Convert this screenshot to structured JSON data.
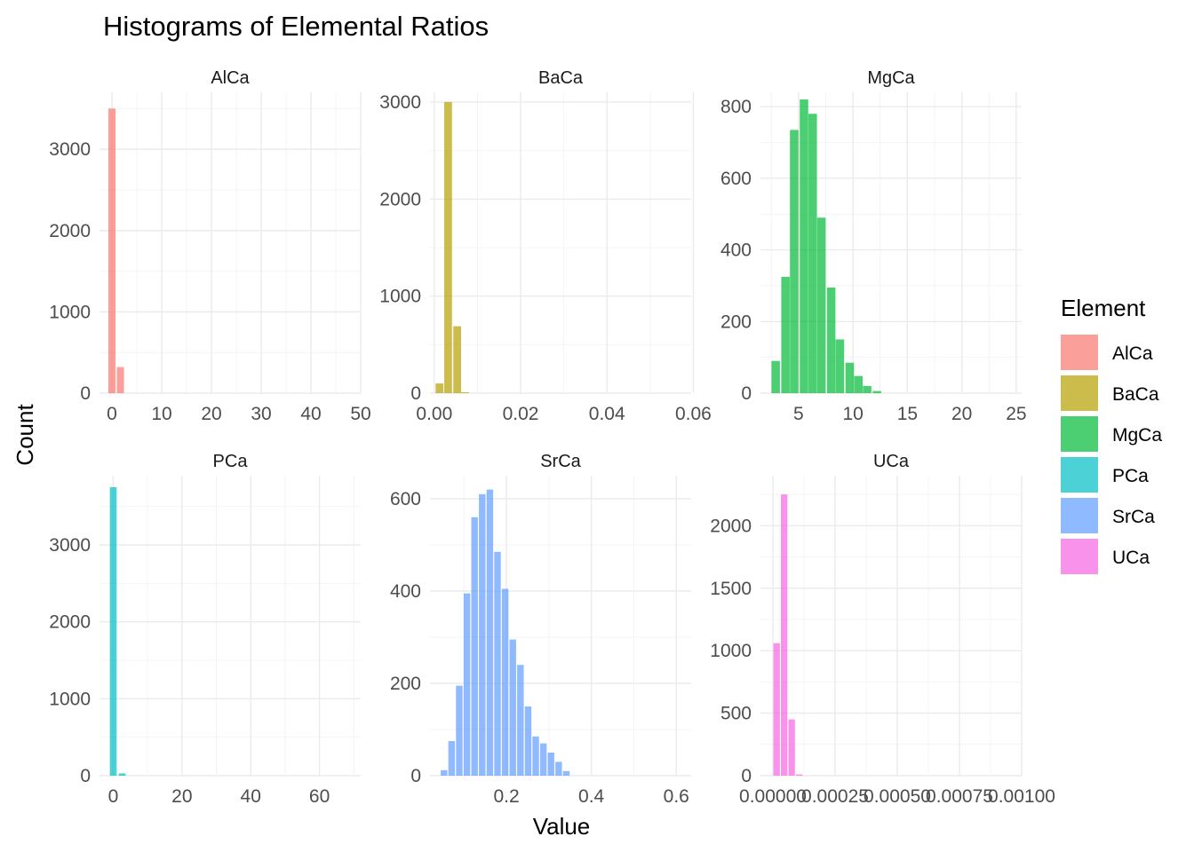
{
  "chart_data": {
    "type": "bar",
    "title": "Histograms of Elemental Ratios",
    "xlabel": "Value",
    "ylabel": "Count",
    "legend": {
      "title": "Element",
      "position": "right",
      "entries": [
        "AlCa",
        "BaCa",
        "MgCa",
        "PCa",
        "SrCa",
        "UCa"
      ]
    },
    "grid": true,
    "facets": [
      {
        "name": "AlCa",
        "color": "#F8766D",
        "xlim": [
          -2.5,
          50
        ],
        "ylim": [
          0,
          3700
        ],
        "x_major_ticks": [
          0,
          10,
          20,
          30,
          40,
          50
        ],
        "x_tick_labels": [
          "0",
          "10",
          "20",
          "30",
          "40",
          "50"
        ],
        "y_major_ticks": [
          0,
          1000,
          2000,
          3000
        ],
        "y_tick_labels": [
          "0",
          "1000",
          "2000",
          "3000"
        ],
        "bin_width": 1.45,
        "x": [
          0,
          1.7
        ],
        "values": [
          3500,
          320
        ]
      },
      {
        "name": "BaCa",
        "color": "#B79F00",
        "xlim": [
          -0.001,
          0.0595
        ],
        "ylim": [
          0,
          3100
        ],
        "x_major_ticks": [
          0,
          0.02,
          0.04,
          0.06
        ],
        "x_tick_labels": [
          "0.00",
          "0.02",
          "0.04",
          "0.06"
        ],
        "y_major_ticks": [
          0,
          1000,
          2000,
          3000
        ],
        "y_tick_labels": [
          "0",
          "1000",
          "2000",
          "3000"
        ],
        "bin_width": 0.0018,
        "x": [
          0.0012,
          0.0032,
          0.0053,
          0.0071
        ],
        "values": [
          100,
          3000,
          690,
          10
        ]
      },
      {
        "name": "MgCa",
        "color": "#00BA38",
        "xlim": [
          1.5,
          25.5
        ],
        "ylim": [
          0,
          840
        ],
        "x_major_ticks": [
          5,
          10,
          15,
          20,
          25
        ],
        "x_tick_labels": [
          "5",
          "10",
          "15",
          "20",
          "25"
        ],
        "y_major_ticks": [
          0,
          200,
          400,
          600,
          800
        ],
        "y_tick_labels": [
          "0",
          "200",
          "400",
          "600",
          "800"
        ],
        "bin_width": 0.78,
        "x": [
          2.9,
          3.8,
          4.6,
          5.5,
          6.3,
          7.1,
          8.0,
          8.8,
          9.7,
          10.5,
          11.3,
          12.2
        ],
        "values": [
          90,
          325,
          735,
          820,
          780,
          490,
          295,
          150,
          85,
          48,
          20,
          6
        ]
      },
      {
        "name": "PCa",
        "color": "#00BFC4",
        "xlim": [
          -4,
          72
        ],
        "ylim": [
          0,
          3900
        ],
        "x_major_ticks": [
          0,
          20,
          40,
          60
        ],
        "x_tick_labels": [
          "0",
          "20",
          "40",
          "60"
        ],
        "y_major_ticks": [
          0,
          1000,
          2000,
          3000
        ],
        "y_tick_labels": [
          "0",
          "1000",
          "2000",
          "3000"
        ],
        "bin_width": 2.0,
        "x": [
          0,
          2.6
        ],
        "values": [
          3750,
          30
        ]
      },
      {
        "name": "SrCa",
        "color": "#619CFF",
        "xlim": [
          0.02,
          0.635
        ],
        "ylim": [
          0,
          650
        ],
        "x_major_ticks": [
          0.2,
          0.4,
          0.6
        ],
        "x_tick_labels": [
          "0.2",
          "0.4",
          "0.6"
        ],
        "y_major_ticks": [
          0,
          200,
          400,
          600
        ],
        "y_tick_labels": [
          "0",
          "200",
          "400",
          "600"
        ],
        "bin_width": 0.0155,
        "x": [
          0.053,
          0.071,
          0.089,
          0.107,
          0.125,
          0.143,
          0.161,
          0.179,
          0.197,
          0.215,
          0.233,
          0.251,
          0.269,
          0.287,
          0.305,
          0.323,
          0.341
        ],
        "values": [
          12,
          75,
          195,
          395,
          560,
          610,
          620,
          485,
          405,
          295,
          240,
          150,
          85,
          70,
          50,
          30,
          10
        ]
      },
      {
        "name": "UCa",
        "color": "#F564E3",
        "xlim": [
          -5e-05,
          0.001
        ],
        "ylim": [
          0,
          2400
        ],
        "x_major_ticks": [
          0,
          0.00025,
          0.0005,
          0.00075,
          0.001
        ],
        "x_tick_labels": [
          "0.00000",
          "0.00025",
          "0.00050",
          "0.00075",
          "0.00100"
        ],
        "y_major_ticks": [
          0,
          500,
          1000,
          1500,
          2000
        ],
        "y_tick_labels": [
          "0",
          "500",
          "1000",
          "1500",
          "2000"
        ],
        "bin_width": 2.6e-05,
        "x": [
          1.51e-05,
          4.53e-05,
          7.55e-05,
          0.0001058
        ],
        "values": [
          1060,
          2250,
          450,
          10
        ]
      }
    ]
  }
}
